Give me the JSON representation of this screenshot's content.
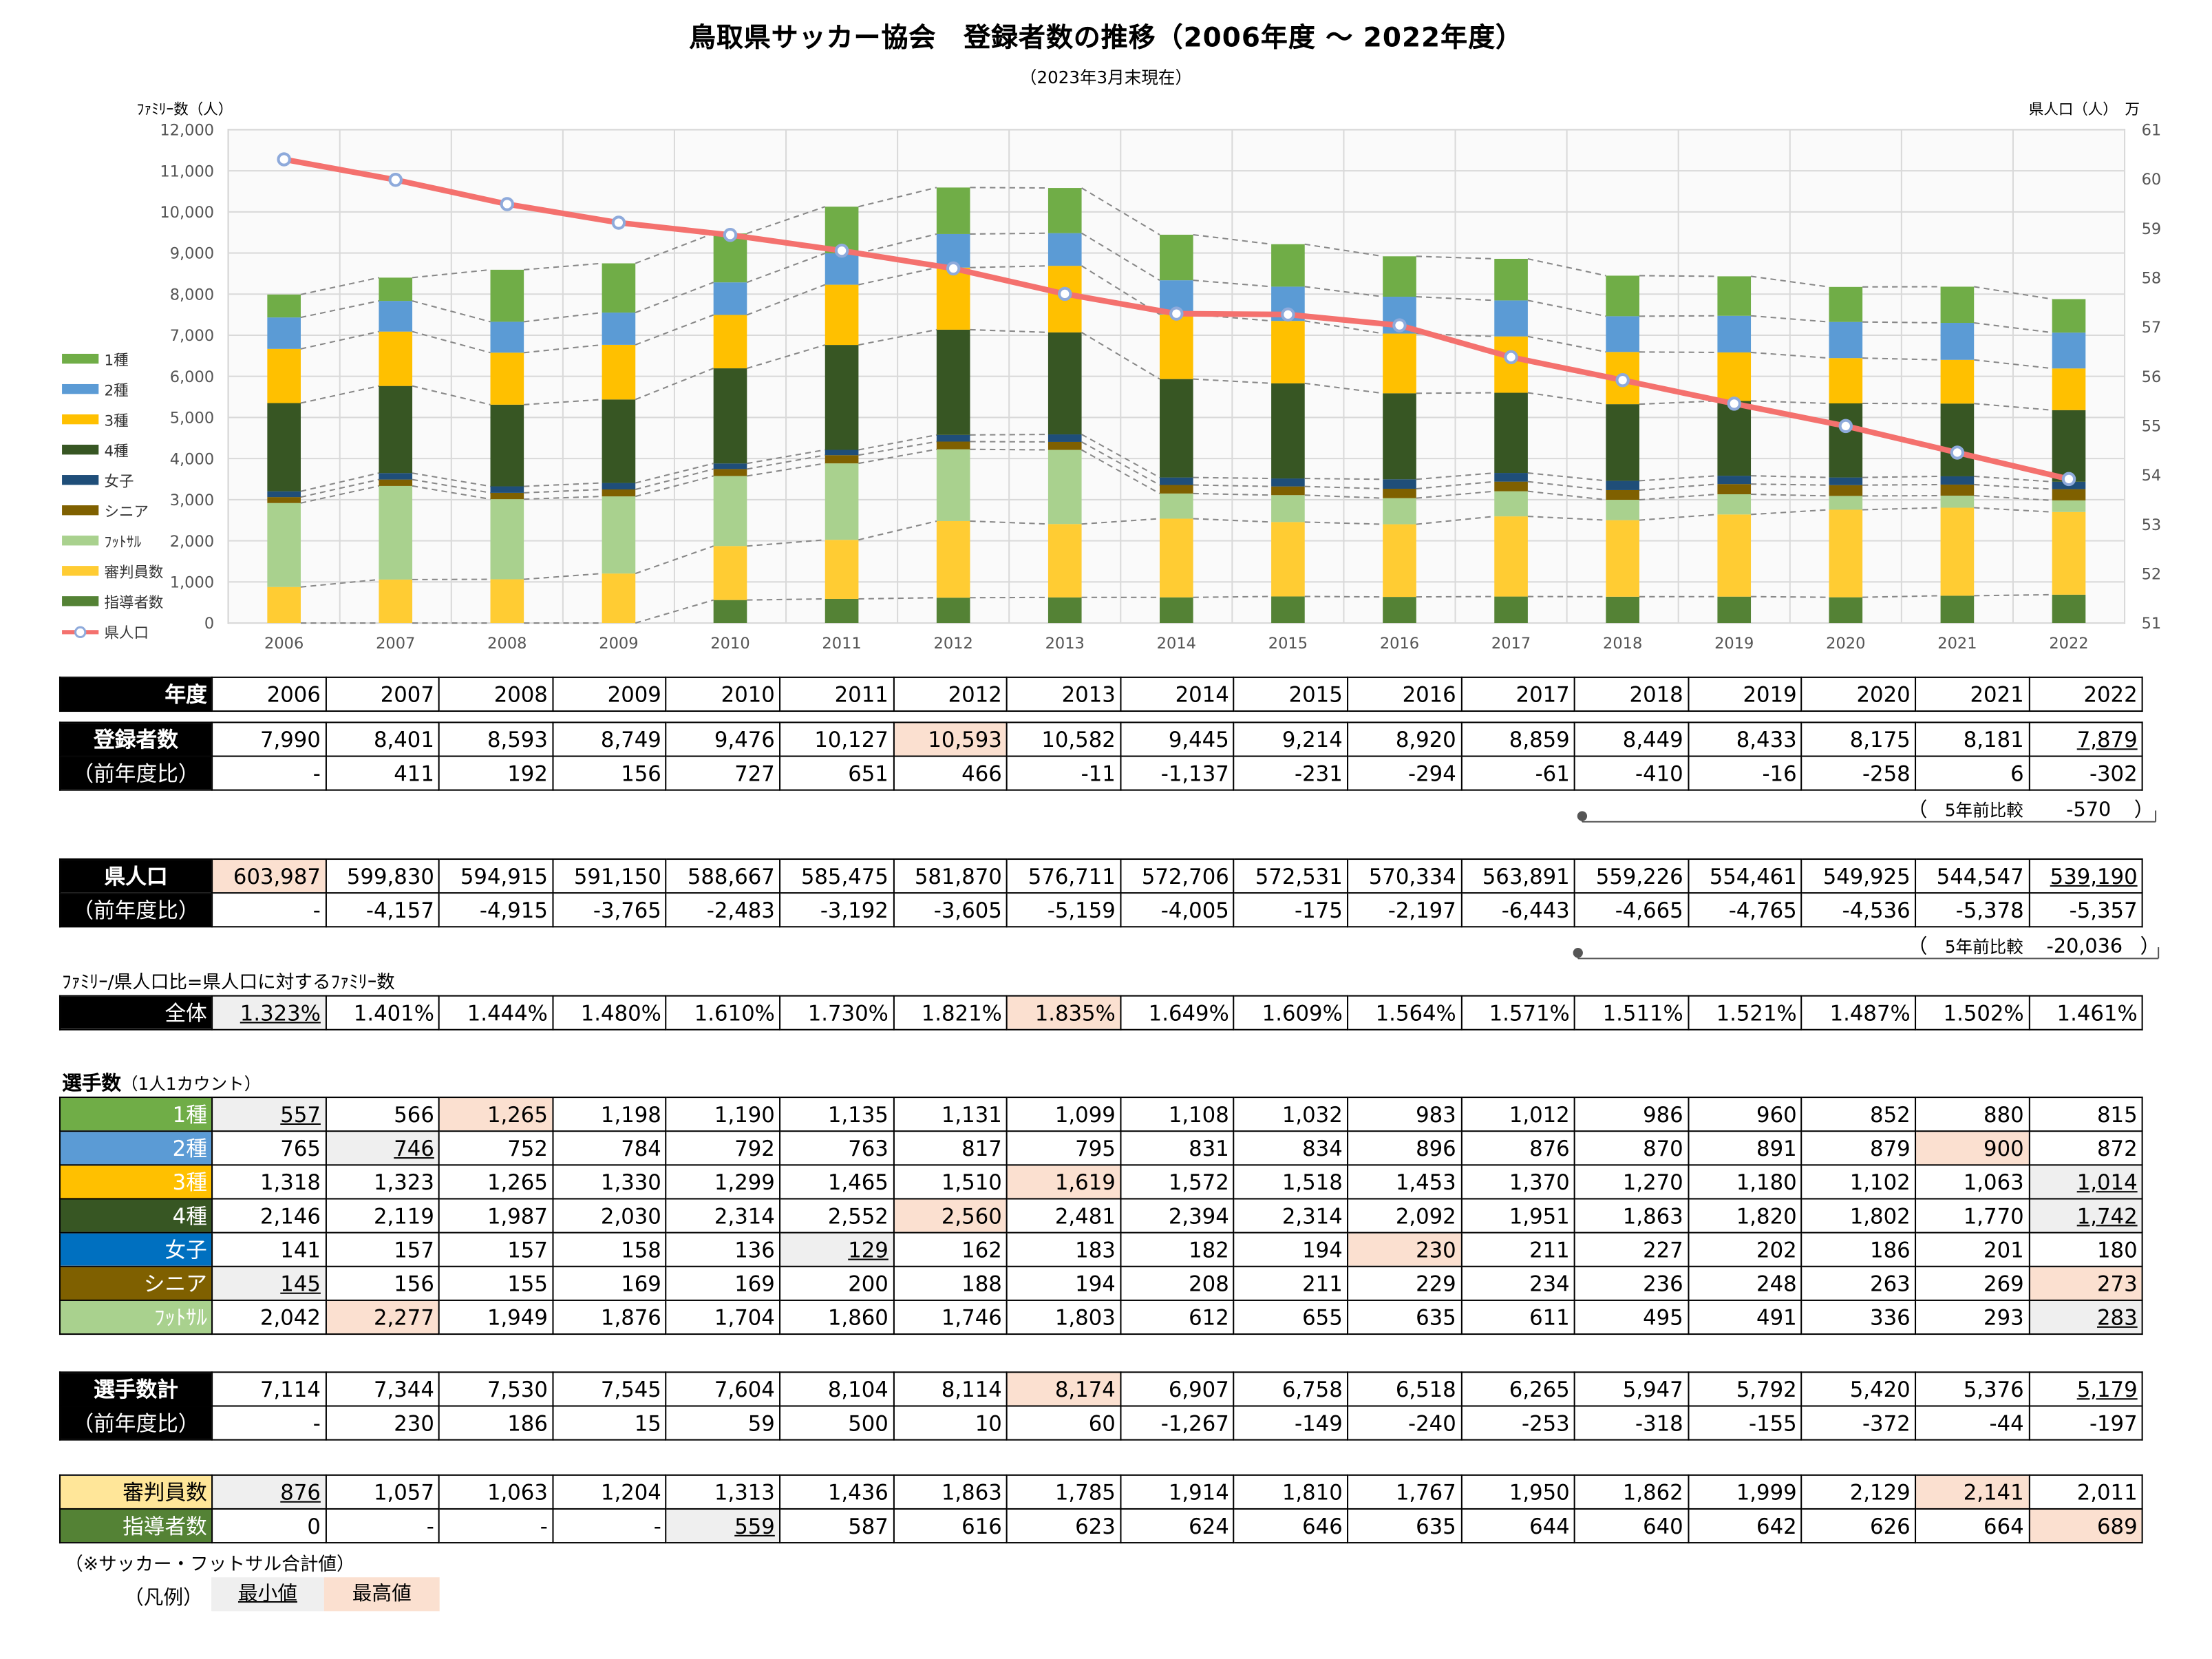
{
  "title": "鳥取県サッカー協会　登録者数の推移（2006年度 〜 2022年度）",
  "subtitle": "（2023年3月末現在）",
  "left_axis_label": "ﾌｧﾐﾘｰ数（人）",
  "right_axis_label": "県人口（人）　万",
  "colors": {
    "c1": "#70ad47",
    "c2": "#5b9bd5",
    "c3": "#ffc000",
    "c4": "#375623",
    "women": "#1f4e79",
    "senior": "#7f6000",
    "futsal": "#a9d18e",
    "referee": "#ffcc33",
    "coach": "#548235",
    "pop": "#f4716e",
    "min_bg": "#efefef",
    "max_bg": "#fbe0d0"
  },
  "chart_data": {
    "type": "bar",
    "stacked": true,
    "categories": [
      "2006",
      "2007",
      "2008",
      "2009",
      "2010",
      "2011",
      "2012",
      "2013",
      "2014",
      "2015",
      "2016",
      "2017",
      "2018",
      "2019",
      "2020",
      "2021",
      "2022"
    ],
    "series": [
      {
        "name": "指導者数",
        "color": "#548235",
        "values": [
          0,
          0,
          0,
          0,
          559,
          587,
          616,
          623,
          624,
          646,
          635,
          644,
          640,
          642,
          626,
          664,
          689
        ]
      },
      {
        "name": "審判員数",
        "color": "#ffcc33",
        "values": [
          876,
          1057,
          1063,
          1204,
          1313,
          1436,
          1863,
          1785,
          1914,
          1810,
          1767,
          1950,
          1862,
          1999,
          2129,
          2141,
          2011
        ]
      },
      {
        "name": "ﾌｯﾄｻﾙ",
        "color": "#a9d18e",
        "values": [
          2042,
          2277,
          1949,
          1876,
          1704,
          1860,
          1746,
          1803,
          612,
          655,
          635,
          611,
          495,
          491,
          336,
          293,
          283
        ]
      },
      {
        "name": "シニア",
        "color": "#7f6000",
        "values": [
          145,
          156,
          155,
          169,
          169,
          200,
          188,
          194,
          208,
          211,
          229,
          234,
          236,
          248,
          263,
          269,
          273
        ]
      },
      {
        "name": "女子",
        "color": "#1f4e79",
        "values": [
          141,
          157,
          157,
          158,
          136,
          129,
          162,
          183,
          182,
          194,
          230,
          211,
          227,
          202,
          186,
          201,
          180
        ]
      },
      {
        "name": "4種",
        "color": "#375623",
        "values": [
          2146,
          2119,
          1987,
          2030,
          2314,
          2552,
          2560,
          2481,
          2394,
          2314,
          2092,
          1951,
          1863,
          1820,
          1802,
          1770,
          1742
        ]
      },
      {
        "name": "3種",
        "color": "#ffc000",
        "values": [
          1318,
          1323,
          1265,
          1330,
          1299,
          1465,
          1510,
          1619,
          1572,
          1518,
          1453,
          1370,
          1270,
          1180,
          1102,
          1063,
          1014
        ]
      },
      {
        "name": "2種",
        "color": "#5b9bd5",
        "values": [
          765,
          746,
          752,
          784,
          792,
          763,
          817,
          795,
          831,
          834,
          896,
          876,
          870,
          891,
          879,
          900,
          872
        ]
      },
      {
        "name": "1種",
        "color": "#70ad47",
        "values": [
          557,
          566,
          1265,
          1198,
          1190,
          1135,
          1131,
          1099,
          1108,
          1032,
          983,
          1012,
          986,
          960,
          852,
          880,
          815
        ]
      }
    ],
    "line_series": {
      "name": "県人口",
      "color": "#f4716e",
      "axis": "right",
      "values_man": [
        60.3987,
        59.983,
        59.4915,
        59.115,
        58.8667,
        58.5475,
        58.187,
        57.6711,
        57.2706,
        57.2531,
        57.0334,
        56.3891,
        55.9226,
        55.4461,
        54.9925,
        54.4547,
        53.919
      ]
    },
    "ylim": [
      0,
      12000
    ],
    "yticks": [
      "12,000",
      "11,000",
      "10,000",
      "9,000",
      "8,000",
      "7,000",
      "6,000",
      "5,000",
      "4,000",
      "3,000",
      "2,000",
      "1,000",
      "0"
    ],
    "y2lim": [
      51,
      61
    ],
    "y2ticks": [
      "61",
      "60",
      "59",
      "58",
      "57",
      "56",
      "55",
      "54",
      "53",
      "52",
      "51"
    ],
    "legend": [
      "1種",
      "2種",
      "3種",
      "4種",
      "女子",
      "シニア",
      "ﾌｯﾄｻﾙ",
      "審判員数",
      "指導者数",
      "県人口"
    ],
    "legend_position": "left",
    "grid": true
  },
  "years_header": "年度",
  "years": [
    "2006",
    "2007",
    "2008",
    "2009",
    "2010",
    "2011",
    "2012",
    "2013",
    "2014",
    "2015",
    "2016",
    "2017",
    "2018",
    "2019",
    "2020",
    "2021",
    "2022"
  ],
  "reg": {
    "label": "登録者数",
    "values": [
      "7,990",
      "8,401",
      "8,593",
      "8,749",
      "9,476",
      "10,127",
      "10,593",
      "10,582",
      "9,445",
      "9,214",
      "8,920",
      "8,859",
      "8,449",
      "8,433",
      "8,175",
      "8,181",
      "7,879"
    ],
    "yoy_label": "（前年度比）",
    "yoy": [
      "-",
      "411",
      "192",
      "156",
      "727",
      "651",
      "466",
      "-11",
      "-1,137",
      "-231",
      "-294",
      "-61",
      "-410",
      "-16",
      "-258",
      "6",
      "-302"
    ],
    "five_year_label": "5年前比較",
    "five_year_value": "-570",
    "paren_open": "（",
    "paren_close": "）"
  },
  "pop": {
    "label": "県人口",
    "values": [
      "603,987",
      "599,830",
      "594,915",
      "591,150",
      "588,667",
      "585,475",
      "581,870",
      "576,711",
      "572,706",
      "572,531",
      "570,334",
      "563,891",
      "559,226",
      "554,461",
      "549,925",
      "544,547",
      "539,190"
    ],
    "yoy_label": "（前年度比）",
    "yoy": [
      "-",
      "-4,157",
      "-4,915",
      "-3,765",
      "-2,483",
      "-3,192",
      "-3,605",
      "-5,159",
      "-4,005",
      "-175",
      "-2,197",
      "-6,443",
      "-4,665",
      "-4,765",
      "-4,536",
      "-5,378",
      "-5,357"
    ],
    "five_year_label": "5年前比較",
    "five_year_value": "-20,036",
    "paren_open": "（",
    "paren_close": "）"
  },
  "ratio": {
    "caption": "ﾌｧﾐﾘｰ/県人口比=県人口に対するﾌｧﾐﾘｰ数",
    "label": "全体",
    "values": [
      "1.323%",
      "1.401%",
      "1.444%",
      "1.480%",
      "1.610%",
      "1.730%",
      "1.821%",
      "1.835%",
      "1.649%",
      "1.609%",
      "1.564%",
      "1.571%",
      "1.511%",
      "1.521%",
      "1.487%",
      "1.502%",
      "1.461%"
    ]
  },
  "players": {
    "caption": "選手数",
    "caption_note": "（1人1カウント）",
    "rows": [
      {
        "label": "1種",
        "values": [
          "557",
          "566",
          "1,265",
          "1,198",
          "1,190",
          "1,135",
          "1,131",
          "1,099",
          "1,108",
          "1,032",
          "983",
          "1,012",
          "986",
          "960",
          "852",
          "880",
          "815"
        ]
      },
      {
        "label": "2種",
        "values": [
          "765",
          "746",
          "752",
          "784",
          "792",
          "763",
          "817",
          "795",
          "831",
          "834",
          "896",
          "876",
          "870",
          "891",
          "879",
          "900",
          "872"
        ]
      },
      {
        "label": "3種",
        "values": [
          "1,318",
          "1,323",
          "1,265",
          "1,330",
          "1,299",
          "1,465",
          "1,510",
          "1,619",
          "1,572",
          "1,518",
          "1,453",
          "1,370",
          "1,270",
          "1,180",
          "1,102",
          "1,063",
          "1,014"
        ]
      },
      {
        "label": "4種",
        "values": [
          "2,146",
          "2,119",
          "1,987",
          "2,030",
          "2,314",
          "2,552",
          "2,560",
          "2,481",
          "2,394",
          "2,314",
          "2,092",
          "1,951",
          "1,863",
          "1,820",
          "1,802",
          "1,770",
          "1,742"
        ]
      },
      {
        "label": "女子",
        "values": [
          "141",
          "157",
          "157",
          "158",
          "136",
          "129",
          "162",
          "183",
          "182",
          "194",
          "230",
          "211",
          "227",
          "202",
          "186",
          "201",
          "180"
        ]
      },
      {
        "label": "シニア",
        "values": [
          "145",
          "156",
          "155",
          "169",
          "169",
          "200",
          "188",
          "194",
          "208",
          "211",
          "229",
          "234",
          "236",
          "248",
          "263",
          "269",
          "273"
        ]
      },
      {
        "label": "ﾌｯﾄｻﾙ",
        "values": [
          "2,042",
          "2,277",
          "1,949",
          "1,876",
          "1,704",
          "1,860",
          "1,746",
          "1,803",
          "612",
          "655",
          "635",
          "611",
          "495",
          "491",
          "336",
          "293",
          "283"
        ]
      }
    ]
  },
  "total": {
    "label": "選手数計",
    "values": [
      "7,114",
      "7,344",
      "7,530",
      "7,545",
      "7,604",
      "8,104",
      "8,114",
      "8,174",
      "6,907",
      "6,758",
      "6,518",
      "6,265",
      "5,947",
      "5,792",
      "5,420",
      "5,376",
      "5,179"
    ],
    "yoy_label": "（前年度比）",
    "yoy": [
      "-",
      "230",
      "186",
      "15",
      "59",
      "500",
      "10",
      "60",
      "-1,267",
      "-149",
      "-240",
      "-253",
      "-318",
      "-155",
      "-372",
      "-44",
      "-197"
    ]
  },
  "staff": {
    "referee_label": "審判員数",
    "referee": [
      "876",
      "1,057",
      "1,063",
      "1,204",
      "1,313",
      "1,436",
      "1,863",
      "1,785",
      "1,914",
      "1,810",
      "1,767",
      "1,950",
      "1,862",
      "1,999",
      "2,129",
      "2,141",
      "2,011"
    ],
    "coach_label": "指導者数",
    "coach": [
      "0",
      "-",
      "-",
      "-",
      "559",
      "587",
      "616",
      "623",
      "624",
      "646",
      "635",
      "644",
      "640",
      "642",
      "626",
      "664",
      "689"
    ]
  },
  "footnote": "（※サッカー・フットサル合計値）",
  "legend_box": {
    "label": "（凡例）",
    "min": "最小値",
    "max": "最高値"
  }
}
